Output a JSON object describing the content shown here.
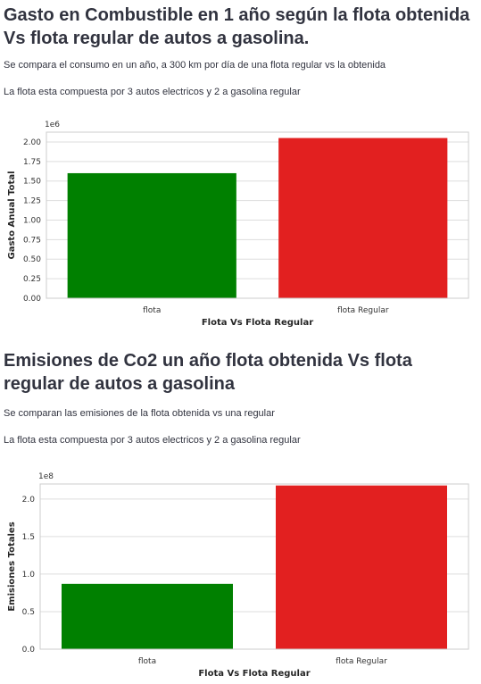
{
  "sections": [
    {
      "title": "Gasto en Combustible en 1 año según la flota obtenida Vs flota regular de autos a gasolina.",
      "description": "Se compara el consumo en un año, a 300 km por día de una flota regular vs la obtenida",
      "composition": "La flota esta compuesta por 3 autos electricos y 2 a gasolina regular"
    },
    {
      "title": "Emisiones de Co2 un año flota obtenida Vs flota regular de autos a gasolina",
      "description": "Se comparan las emisiones de la flota obtenida vs una regular",
      "composition": "La flota esta compuesta por 3 autos electricos y 2 a gasolina regular"
    }
  ],
  "chart_data": [
    {
      "type": "bar",
      "categories": [
        "flota",
        "flota Regular"
      ],
      "values": [
        1600000,
        2050000
      ],
      "colors": [
        "#008000",
        "#e22020"
      ],
      "xlabel": "Flota Vs Flota Regular",
      "ylabel": "Gasto Anual Total",
      "scale_label": "1e6",
      "ylim": [
        0,
        2000000
      ],
      "yticks": [
        0,
        250000,
        500000,
        750000,
        1000000,
        1250000,
        1500000,
        1750000,
        2000000
      ],
      "ytick_labels": [
        "0.00",
        "0.25",
        "0.50",
        "0.75",
        "1.00",
        "1.25",
        "1.50",
        "1.75",
        "2.00"
      ],
      "grid": true
    },
    {
      "type": "bar",
      "categories": [
        "flota",
        "flota Regular"
      ],
      "values": [
        87000000,
        218000000
      ],
      "colors": [
        "#008000",
        "#e22020"
      ],
      "xlabel": "Flota Vs Flota Regular",
      "ylabel": "Emisiones Totales",
      "scale_label": "1e8",
      "ylim": [
        0,
        200000000
      ],
      "yticks": [
        0,
        50000000,
        100000000,
        150000000,
        200000000
      ],
      "ytick_labels": [
        "0.0",
        "0.5",
        "1.0",
        "1.5",
        "2.0"
      ],
      "grid": true
    }
  ]
}
